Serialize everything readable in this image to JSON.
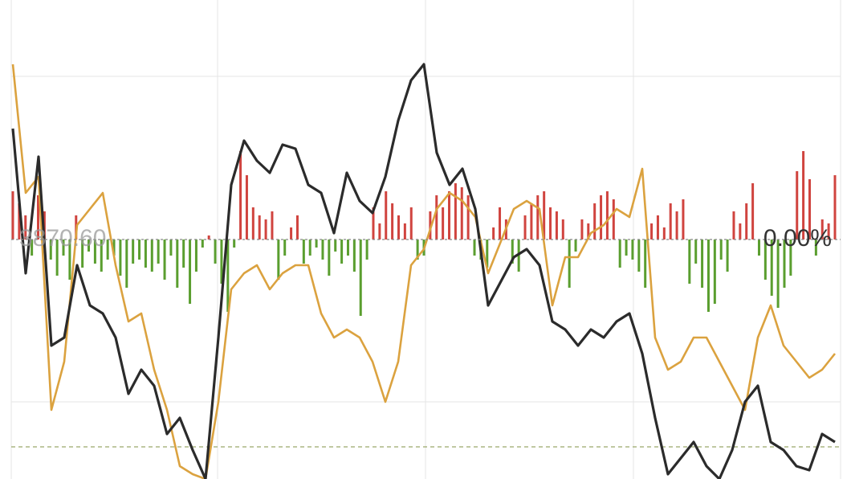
{
  "chart_data": {
    "type": "line",
    "ylim": [
      3867.62,
      3873.58
    ],
    "yticks": [
      {
        "value": 3870.6,
        "label": "3870.60"
      }
    ],
    "y2lim": [
      -298,
      298
    ],
    "y2ticks": [
      {
        "value": 0,
        "label": "0.00%"
      }
    ],
    "series": [
      {
        "color": "#2b2b2b",
        "values": [
          3871.98,
          3870.18,
          3871.63,
          3869.28,
          3869.38,
          3870.28,
          3869.78,
          3869.68,
          3869.38,
          3868.68,
          3868.98,
          3868.78,
          3868.18,
          3868.38,
          3867.98,
          3867.62,
          3869.38,
          3871.28,
          3871.83,
          3871.58,
          3871.43,
          3871.78,
          3871.73,
          3871.28,
          3871.18,
          3870.68,
          3871.43,
          3871.08,
          3870.93,
          3871.38,
          3872.08,
          3872.58,
          3872.78,
          3871.68,
          3871.28,
          3871.48,
          3870.98,
          3869.78,
          3870.08,
          3870.38,
          3870.48,
          3870.28,
          3869.58,
          3869.48,
          3869.28,
          3869.48,
          3869.38,
          3869.58,
          3869.68,
          3869.18,
          3868.38,
          3867.68,
          3867.88,
          3868.08,
          3867.78,
          3867.62,
          3867.98,
          3868.58,
          3868.78,
          3868.08,
          3867.98,
          3867.78,
          3867.73,
          3868.18,
          3868.08
        ]
      },
      {
        "color": "#dba23f",
        "values": [
          3872.78,
          3871.18,
          3871.38,
          3868.48,
          3869.08,
          3870.78,
          3870.98,
          3871.18,
          3870.28,
          3869.58,
          3869.68,
          3868.98,
          3868.48,
          3867.78,
          3867.68,
          3867.62,
          3868.58,
          3869.98,
          3870.18,
          3870.28,
          3869.98,
          3870.18,
          3870.28,
          3870.28,
          3869.68,
          3869.38,
          3869.48,
          3869.38,
          3869.08,
          3868.58,
          3869.08,
          3870.28,
          3870.48,
          3870.98,
          3871.18,
          3871.08,
          3870.88,
          3870.18,
          3870.58,
          3870.98,
          3871.08,
          3870.98,
          3869.78,
          3870.38,
          3870.38,
          3870.68,
          3870.78,
          3870.98,
          3870.88,
          3871.48,
          3869.38,
          3868.98,
          3869.08,
          3869.38,
          3869.38,
          3869.08,
          3868.78,
          3868.48,
          3869.38,
          3869.78,
          3869.28,
          3869.08,
          3868.88,
          3868.98,
          3869.18
        ]
      }
    ],
    "bars": {
      "axis": "y2",
      "up_color": "#d0443f",
      "down_color": "#5a9e2f",
      "values": [
        60,
        45,
        30,
        -20,
        55,
        35,
        -25,
        -45,
        -20,
        -50,
        30,
        -35,
        -15,
        -30,
        -40,
        -25,
        -20,
        -45,
        -60,
        -30,
        -25,
        -35,
        -40,
        -30,
        -50,
        -20,
        -60,
        -35,
        -80,
        -40,
        -10,
        5,
        -30,
        -55,
        -90,
        -10,
        110,
        80,
        40,
        30,
        25,
        35,
        -50,
        -20,
        15,
        30,
        -30,
        -20,
        -10,
        -25,
        -45,
        -15,
        -30,
        -20,
        -40,
        -95,
        -25,
        40,
        20,
        60,
        45,
        30,
        20,
        40,
        -25,
        -20,
        35,
        55,
        40,
        60,
        70,
        65,
        55,
        -20,
        -25,
        -35,
        15,
        40,
        25,
        -30,
        -40,
        30,
        45,
        55,
        60,
        40,
        35,
        25,
        -60,
        -15,
        25,
        20,
        45,
        55,
        60,
        50,
        -35,
        -20,
        -25,
        -40,
        -60,
        20,
        30,
        15,
        45,
        35,
        50,
        -55,
        -30,
        -60,
        -90,
        -80,
        -25,
        -40,
        35,
        20,
        45,
        70,
        -20,
        -50,
        -70,
        -85,
        -60,
        -45,
        85,
        110,
        75,
        -20,
        25,
        20,
        80
      ]
    }
  }
}
